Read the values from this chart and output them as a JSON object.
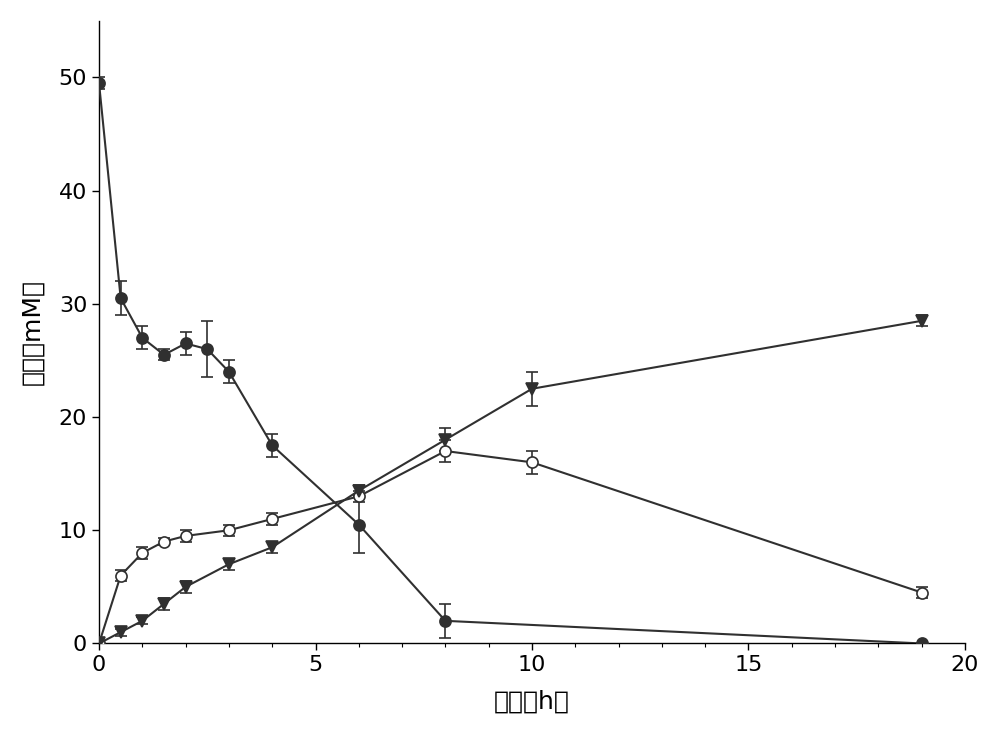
{
  "title": "",
  "xlabel": "时间（h）",
  "ylabel": "浓度（mM）",
  "xlim": [
    0,
    20
  ],
  "ylim": [
    0,
    55
  ],
  "xticks": [
    0,
    5,
    10,
    15,
    20
  ],
  "yticks": [
    0,
    10,
    20,
    30,
    40,
    50
  ],
  "series_filled_circle": {
    "x": [
      0,
      0.5,
      1.0,
      1.5,
      2.0,
      2.5,
      3.0,
      4.0,
      6.0,
      8.0,
      19.0
    ],
    "y": [
      49.5,
      30.5,
      27.0,
      25.5,
      26.5,
      26.0,
      24.0,
      17.5,
      10.5,
      2.0,
      0.0
    ],
    "yerr": [
      0.5,
      1.5,
      1.0,
      0.5,
      1.0,
      2.5,
      1.0,
      1.0,
      2.5,
      1.5,
      0.0
    ],
    "marker": "o",
    "color": "#303030",
    "filled": true,
    "markersize": 8,
    "linewidth": 1.5
  },
  "series_open_circle": {
    "x": [
      0,
      0.5,
      1.0,
      1.5,
      2.0,
      3.0,
      4.0,
      6.0,
      8.0,
      10.0,
      19.0
    ],
    "y": [
      0.0,
      6.0,
      8.0,
      9.0,
      9.5,
      10.0,
      11.0,
      13.0,
      17.0,
      16.0,
      4.5
    ],
    "yerr": [
      0.0,
      0.5,
      0.5,
      0.3,
      0.5,
      0.5,
      0.5,
      0.5,
      1.0,
      1.0,
      0.5
    ],
    "marker": "o",
    "color": "#303030",
    "filled": false,
    "markersize": 8,
    "linewidth": 1.5
  },
  "series_filled_triangle": {
    "x": [
      0,
      0.5,
      1.0,
      1.5,
      2.0,
      3.0,
      4.0,
      6.0,
      8.0,
      10.0,
      19.0
    ],
    "y": [
      0.0,
      1.0,
      2.0,
      3.5,
      5.0,
      7.0,
      8.5,
      13.5,
      18.0,
      22.5,
      28.5
    ],
    "yerr": [
      0.0,
      0.3,
      0.3,
      0.5,
      0.5,
      0.5,
      0.5,
      0.5,
      1.0,
      1.5,
      0.5
    ],
    "marker": "v",
    "color": "#303030",
    "filled": true,
    "markersize": 9,
    "linewidth": 1.5
  },
  "background_color": "#ffffff",
  "figure_facecolor": "#ffffff",
  "tick_fontsize": 16,
  "label_fontsize": 18
}
